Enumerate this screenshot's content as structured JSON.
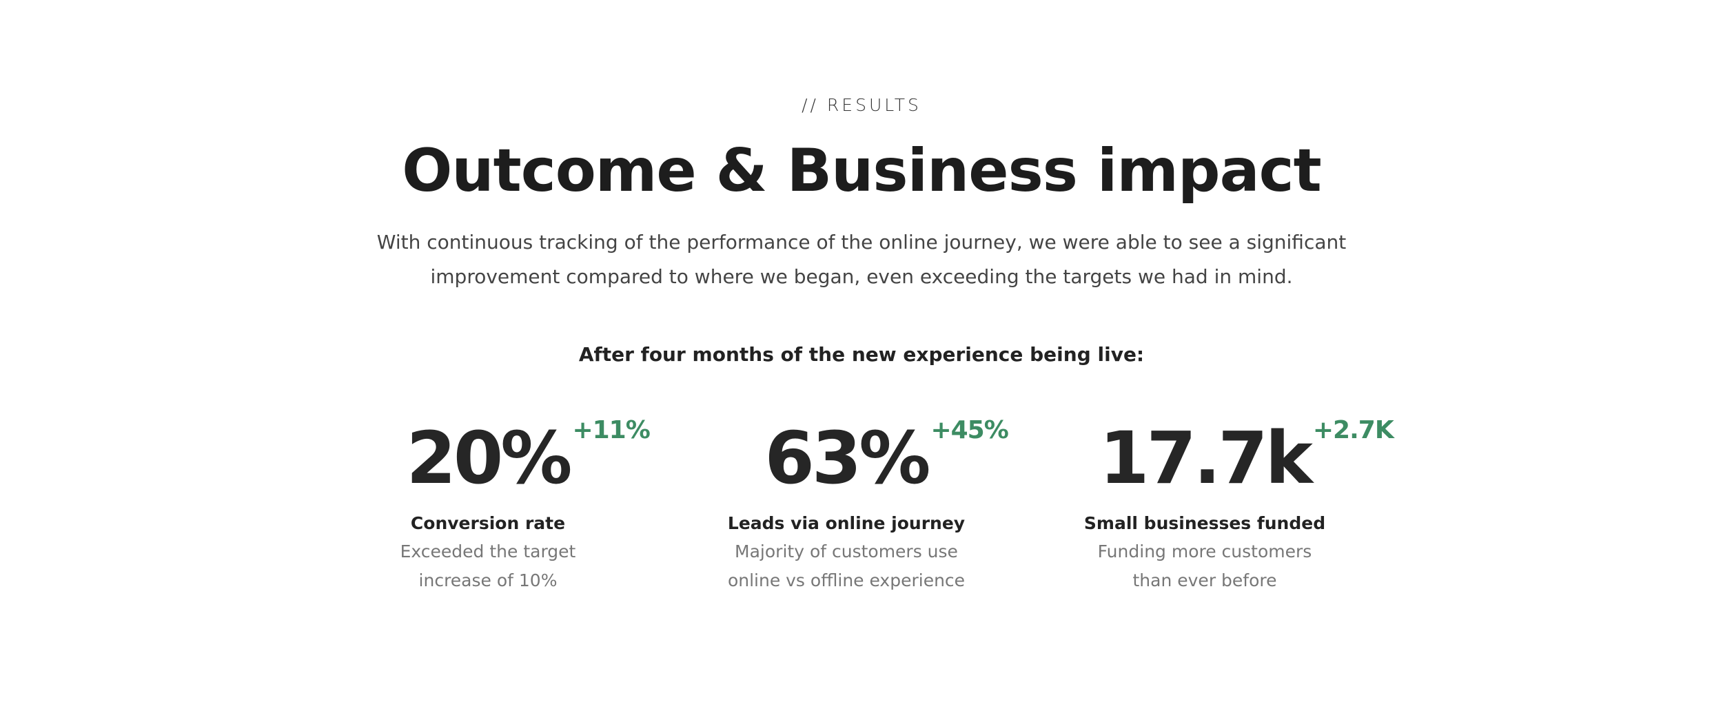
{
  "header": {
    "eyebrow": "// RESULTS",
    "title": "Outcome & Business impact",
    "description": [
      "With continuous tracking of the performance of the online journey, we were able to see a significant",
      "improvement compared to where we began, even exceeding the targets we had in mind."
    ]
  },
  "stats_heading": "After four months of the new experience being live:",
  "stats": [
    {
      "value": "20%",
      "delta": "+11%",
      "label": "Conversion rate",
      "description": [
        "Exceeded the target",
        "increase of 10%"
      ]
    },
    {
      "value": "63%",
      "delta": "+45%",
      "label": "Leads via online journey",
      "description": [
        "Majority of customers use",
        "online vs offline experience"
      ]
    },
    {
      "value": "17.7k",
      "delta": "+2.7K",
      "label": "Small businesses funded",
      "description": [
        "Funding more customers",
        "than ever before"
      ]
    }
  ]
}
